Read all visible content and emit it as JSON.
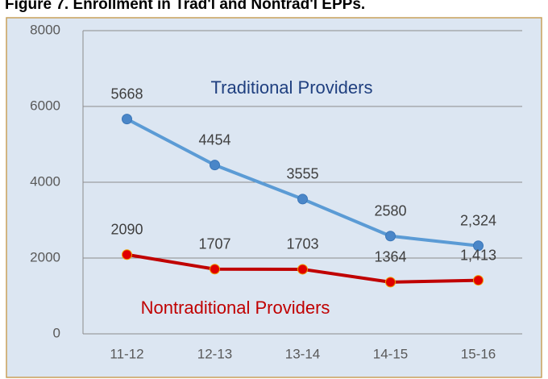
{
  "chart_data": {
    "type": "line",
    "title": "Figure 7. Enrollment in Trad'l and Nontrad'l EPPs.",
    "categories": [
      "11-12",
      "12-13",
      "13-14",
      "14-15",
      "15-16"
    ],
    "series": [
      {
        "name": "Traditional Providers",
        "color": "#5b9bd5",
        "values": [
          5668,
          4454,
          3555,
          2580,
          2324
        ],
        "value_labels": [
          "5668",
          "4454",
          "3555",
          "2580",
          "2,324"
        ]
      },
      {
        "name": "Nontraditional Providers",
        "color": "#c00000",
        "values": [
          2090,
          1707,
          1703,
          1364,
          1413
        ],
        "value_labels": [
          "2090",
          "1707",
          "1703",
          "1364",
          "1,413"
        ]
      }
    ],
    "ylim": [
      0,
      8000
    ],
    "yticks": [
      0,
      2000,
      4000,
      6000,
      8000
    ],
    "grid": true
  }
}
